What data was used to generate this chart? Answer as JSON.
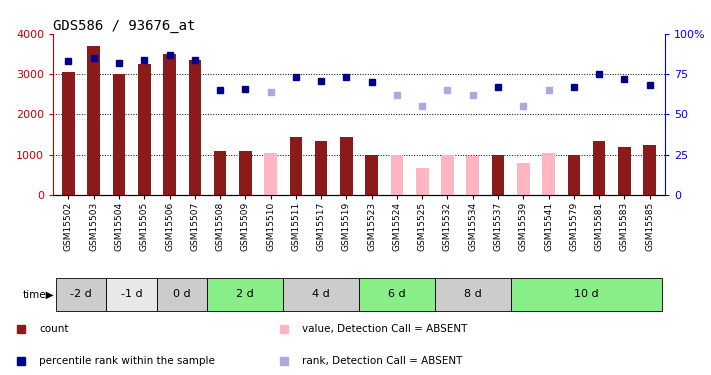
{
  "title": "GDS586 / 93676_at",
  "samples": [
    "GSM15502",
    "GSM15503",
    "GSM15504",
    "GSM15505",
    "GSM15506",
    "GSM15507",
    "GSM15508",
    "GSM15509",
    "GSM15510",
    "GSM15511",
    "GSM15517",
    "GSM15519",
    "GSM15523",
    "GSM15524",
    "GSM15525",
    "GSM15532",
    "GSM15534",
    "GSM15537",
    "GSM15539",
    "GSM15541",
    "GSM15579",
    "GSM15581",
    "GSM15583",
    "GSM15585"
  ],
  "bar_values": [
    3050,
    3700,
    3000,
    3250,
    3500,
    3350,
    1080,
    1080,
    1050,
    1450,
    1350,
    1450,
    1000,
    1000,
    670,
    1000,
    970,
    1000,
    800,
    1050,
    1000,
    1350,
    1200,
    1230
  ],
  "bar_absent": [
    false,
    false,
    false,
    false,
    false,
    false,
    false,
    false,
    true,
    false,
    false,
    false,
    false,
    true,
    true,
    true,
    true,
    false,
    true,
    true,
    false,
    false,
    false,
    false
  ],
  "rank_values": [
    83,
    85,
    82,
    84,
    87,
    84,
    65,
    66,
    64,
    73,
    71,
    73,
    70,
    62,
    55,
    65,
    62,
    67,
    55,
    65,
    67,
    75,
    72,
    68
  ],
  "rank_absent": [
    false,
    false,
    false,
    false,
    false,
    false,
    false,
    false,
    true,
    false,
    false,
    false,
    false,
    true,
    true,
    true,
    true,
    false,
    true,
    true,
    false,
    false,
    false,
    false
  ],
  "time_groups": [
    {
      "label": "-2 d",
      "start": 0,
      "end": 2,
      "color": "#cccccc"
    },
    {
      "label": "-1 d",
      "start": 2,
      "end": 4,
      "color": "#e8e8e8"
    },
    {
      "label": "0 d",
      "start": 4,
      "end": 6,
      "color": "#cccccc"
    },
    {
      "label": "2 d",
      "start": 6,
      "end": 9,
      "color": "#88ee88"
    },
    {
      "label": "4 d",
      "start": 9,
      "end": 12,
      "color": "#cccccc"
    },
    {
      "label": "6 d",
      "start": 12,
      "end": 15,
      "color": "#88ee88"
    },
    {
      "label": "8 d",
      "start": 15,
      "end": 18,
      "color": "#cccccc"
    },
    {
      "label": "10 d",
      "start": 18,
      "end": 24,
      "color": "#88ee88"
    }
  ],
  "bar_color_present": "#8B1A1A",
  "bar_color_absent": "#FFB6C1",
  "rank_color_present": "#00008B",
  "rank_color_absent": "#AAAADD",
  "ylim_left": [
    0,
    4000
  ],
  "ylim_right": [
    0,
    100
  ],
  "yticks_left": [
    0,
    1000,
    2000,
    3000,
    4000
  ],
  "yticks_right": [
    0,
    25,
    50,
    75,
    100
  ],
  "grid_values": [
    1000,
    2000,
    3000
  ],
  "background_color": "#ffffff",
  "legend_items": [
    {
      "color": "#8B1A1A",
      "label": "count"
    },
    {
      "color": "#00008B",
      "label": "percentile rank within the sample"
    },
    {
      "color": "#FFB6C1",
      "label": "value, Detection Call = ABSENT"
    },
    {
      "color": "#AAAADD",
      "label": "rank, Detection Call = ABSENT"
    }
  ]
}
